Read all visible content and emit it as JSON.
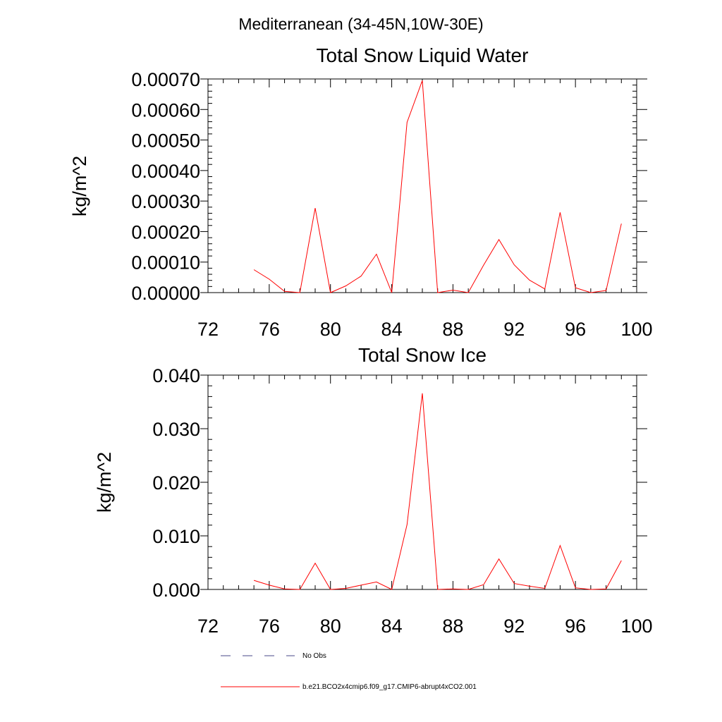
{
  "figure": {
    "title": "Mediterranean (34-45N,10W-30E)"
  },
  "legend": {
    "entries": [
      {
        "label": "No Obs",
        "color": "#4a4a8a",
        "style": "dashed"
      },
      {
        "label": "b.e21.BCO2x4cmip6.f09_g17.CMIP6-abrupt4xCO2.001",
        "color": "#ff0000",
        "style": "solid"
      }
    ]
  },
  "chart_data": [
    {
      "type": "line",
      "title": "Total Snow Liquid Water",
      "ylabel": "kg/m^2",
      "xlabel": "",
      "xlim": [
        72,
        100
      ],
      "ylim": [
        0,
        0.0007
      ],
      "grid": false,
      "x_ticks": [
        "72",
        "76",
        "80",
        "84",
        "88",
        "92",
        "96",
        "100"
      ],
      "y_ticks": [
        "0.00000",
        "0.00010",
        "0.00020",
        "0.00030",
        "0.00040",
        "0.00050",
        "0.00060",
        "0.00070"
      ],
      "series": [
        {
          "name": "b.e21.BCO2x4cmip6.f09_g17.CMIP6-abrupt4xCO2.001",
          "color": "#ff0000",
          "x": [
            75,
            76,
            77,
            78,
            79,
            80,
            81,
            82,
            83,
            84,
            85,
            86,
            87,
            88,
            89,
            90,
            91,
            92,
            93,
            94,
            95,
            96,
            97,
            98,
            99
          ],
          "values": [
            7.5e-05,
            4.4e-05,
            4e-06,
            0.0,
            0.000277,
            0.0,
            2.2e-05,
            5.4e-05,
            0.000126,
            0.0,
            0.000558,
            0.000695,
            0.0,
            8e-06,
            0.0,
            9e-05,
            0.000174,
            9.1e-05,
            4.1e-05,
            1.2e-05,
            0.000263,
            1.6e-05,
            0.0,
            7e-06,
            0.000226
          ]
        }
      ]
    },
    {
      "type": "line",
      "title": "Total Snow Ice",
      "ylabel": "kg/m^2",
      "xlabel": "",
      "xlim": [
        72,
        100
      ],
      "ylim": [
        0,
        0.04
      ],
      "grid": false,
      "x_ticks": [
        "72",
        "76",
        "80",
        "84",
        "88",
        "92",
        "96",
        "100"
      ],
      "y_ticks": [
        "0.000",
        "0.010",
        "0.020",
        "0.030",
        "0.040"
      ],
      "series": [
        {
          "name": "b.e21.BCO2x4cmip6.f09_g17.CMIP6-abrupt4xCO2.001",
          "color": "#ff0000",
          "x": [
            75,
            76,
            77,
            78,
            79,
            80,
            81,
            82,
            83,
            84,
            85,
            86,
            87,
            88,
            89,
            90,
            91,
            92,
            93,
            94,
            95,
            96,
            97,
            98,
            99
          ],
          "values": [
            0.0017,
            0.0008,
            0.0001,
            0.0,
            0.0049,
            0.0,
            0.0002,
            0.0008,
            0.0014,
            0.0,
            0.0121,
            0.0366,
            0.0,
            0.0001,
            0.0,
            0.0009,
            0.0057,
            0.0011,
            0.0006,
            0.0002,
            0.0082,
            0.0003,
            0.0,
            0.0001,
            0.0054
          ]
        }
      ]
    }
  ]
}
